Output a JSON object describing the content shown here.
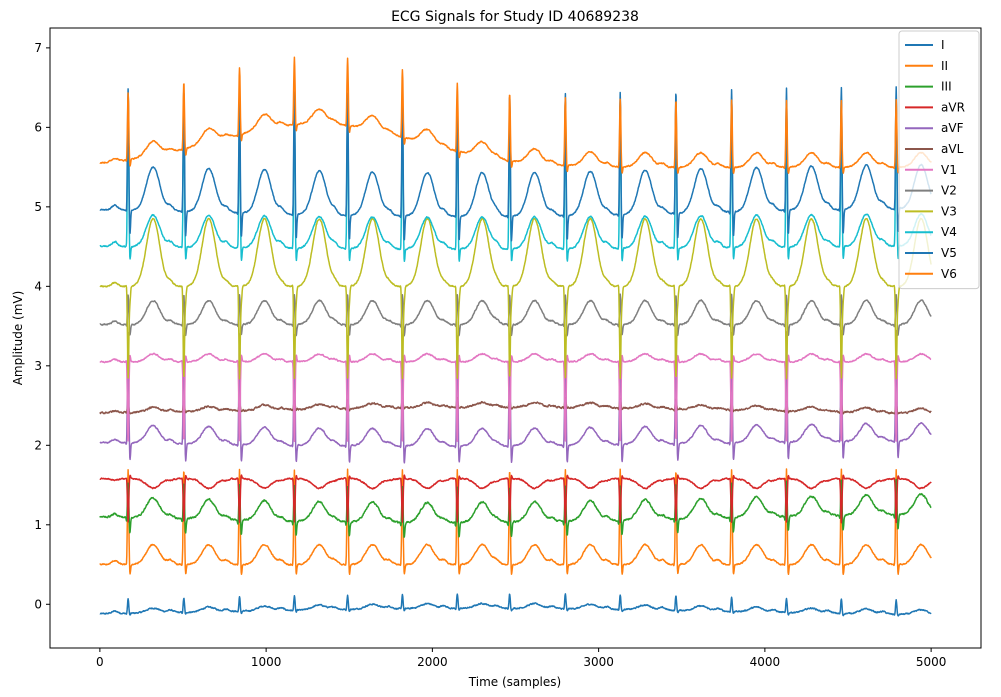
{
  "chart_data": {
    "type": "line",
    "title": "ECG Signals for Study ID 40689238",
    "xlabel": "Time (samples)",
    "ylabel": "Amplitude (mV)",
    "xlim": [
      -300,
      5300
    ],
    "ylim": [
      -0.55,
      7.25
    ],
    "xticks": [
      0,
      1000,
      2000,
      3000,
      4000,
      5000
    ],
    "yticks": [
      0,
      1,
      2,
      3,
      4,
      5,
      6,
      7
    ],
    "grid": false,
    "legend_position": "top-right",
    "n_samples": 5000,
    "beat_samples": [
      170,
      505,
      840,
      1170,
      1490,
      1820,
      2150,
      2465,
      2800,
      3130,
      3465,
      3800,
      4130,
      4460,
      4790
    ],
    "series": [
      {
        "name": "I",
        "color": "#1f77b4",
        "offset": -0.15,
        "r": 0.18,
        "q": -0.02,
        "s": -0.03,
        "t": 0.06,
        "p": 0.03,
        "wander": 0.1,
        "wander_center": 2300,
        "wander_width": 1500,
        "noise": 0.015
      },
      {
        "name": "II",
        "color": "#ff7f0e",
        "offset": 0.5,
        "r": 1.2,
        "q": -0.05,
        "s": -0.15,
        "t": 0.25,
        "p": 0.05,
        "wander": 0.0,
        "wander_center": 2500,
        "wander_width": 1500,
        "noise": 0.015
      },
      {
        "name": "III",
        "color": "#2ca02c",
        "offset": 1.15,
        "r": 0.45,
        "q": -0.08,
        "s": -0.2,
        "t": 0.25,
        "p": 0.04,
        "wander": -0.12,
        "wander_center": 2000,
        "wander_width": 1500,
        "noise": 0.02
      },
      {
        "name": "aVR",
        "color": "#d62728",
        "offset": 1.58,
        "r": -0.55,
        "q": 0.03,
        "s": 0.05,
        "t": -0.12,
        "p": -0.02,
        "wander": 0.0,
        "wander_center": 2500,
        "wander_width": 1500,
        "noise": 0.015
      },
      {
        "name": "aVF",
        "color": "#9467bd",
        "offset": 2.07,
        "r": 1.4,
        "q": -0.08,
        "s": -0.25,
        "t": 0.22,
        "p": 0.04,
        "wander": -0.08,
        "wander_center": 2000,
        "wander_width": 1500,
        "noise": 0.015
      },
      {
        "name": "aVL",
        "color": "#8c564b",
        "offset": 2.38,
        "r": 0.12,
        "q": -0.02,
        "s": -0.02,
        "t": 0.06,
        "p": 0.02,
        "wander": 0.1,
        "wander_center": 2400,
        "wander_width": 1500,
        "noise": 0.02
      },
      {
        "name": "V1",
        "color": "#e377c2",
        "offset": 3.05,
        "r": -1.0,
        "q": 0.05,
        "s": 0.1,
        "t": 0.1,
        "p": 0.03,
        "wander": 0.0,
        "wander_center": 2500,
        "wander_width": 1500,
        "noise": 0.015
      },
      {
        "name": "V2",
        "color": "#7f7f7f",
        "offset": 3.52,
        "r": 0.38,
        "q": -0.05,
        "s": -0.15,
        "t": 0.3,
        "p": 0.04,
        "wander": 0.0,
        "wander_center": 2500,
        "wander_width": 1500,
        "noise": 0.015
      },
      {
        "name": "V3",
        "color": "#bcbd22",
        "offset": 4.0,
        "r": -1.15,
        "q": 0.05,
        "s": -0.2,
        "t": 0.85,
        "p": 0.05,
        "wander": 0.0,
        "wander_center": 2500,
        "wander_width": 1500,
        "noise": 0.015
      },
      {
        "name": "V4",
        "color": "#17becf",
        "offset": 4.52,
        "r": 1.85,
        "q": -0.05,
        "s": -0.2,
        "t": 0.4,
        "p": 0.06,
        "wander": -0.05,
        "wander_center": 2200,
        "wander_width": 1500,
        "noise": 0.015
      },
      {
        "name": "V5",
        "color": "#1f77b4",
        "offset": 5.0,
        "r": 1.55,
        "q": -0.08,
        "s": -0.35,
        "t": 0.55,
        "p": 0.06,
        "wander": -0.12,
        "wander_center": 2200,
        "wander_width": 1400,
        "noise": 0.015
      },
      {
        "name": "V6",
        "color": "#ff7f0e",
        "offset": 5.5,
        "r": 0.85,
        "q": -0.05,
        "s": -0.1,
        "t": 0.18,
        "p": 0.04,
        "wander": 0.55,
        "wander_center": 1300,
        "wander_width": 600,
        "noise": 0.015
      }
    ]
  }
}
